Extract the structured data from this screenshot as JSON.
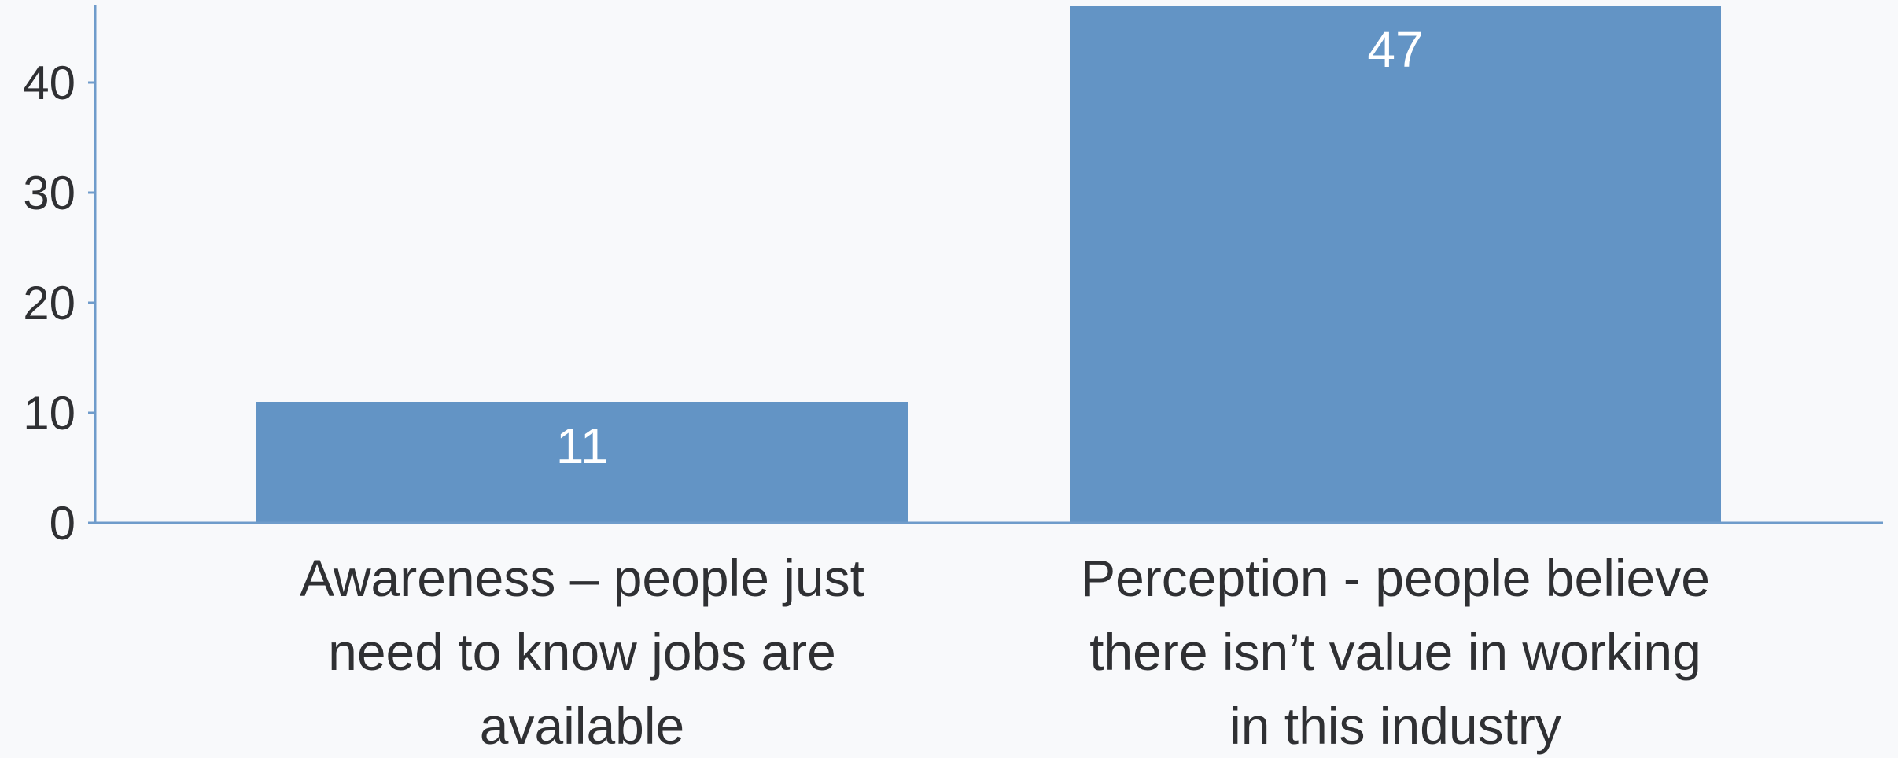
{
  "chart_data": {
    "type": "bar",
    "categories": [
      [
        "Awareness – people just",
        "need to know jobs are",
        "available"
      ],
      [
        "Perception - people believe",
        "there isn’t value in working",
        "in this industry"
      ]
    ],
    "values": [
      11,
      47
    ],
    "data_labels": [
      "11",
      "47"
    ],
    "ylim": [
      0,
      47
    ],
    "yticks": [
      0,
      10,
      20,
      30,
      40
    ],
    "ytick_labels": [
      "0",
      "10",
      "20",
      "30",
      "40"
    ],
    "grid": false,
    "legend": "none",
    "title": "",
    "xlabel": "",
    "ylabel": "",
    "colors": {
      "bar": "#6394c5",
      "axis": "#6f9ccb",
      "text": "#2f3033",
      "bar_text": "#ffffff",
      "background": "#f8f9fb"
    }
  }
}
